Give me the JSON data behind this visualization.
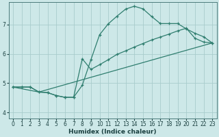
{
  "xlabel": "Humidex (Indice chaleur)",
  "bg_color": "#cde8e8",
  "grid_color": "#a8cccc",
  "line_color": "#2e7d6e",
  "xlim": [
    -0.5,
    23.5
  ],
  "ylim": [
    3.8,
    7.75
  ],
  "yticks": [
    4,
    5,
    6,
    7
  ],
  "xticks": [
    0,
    1,
    2,
    3,
    4,
    5,
    6,
    7,
    8,
    9,
    10,
    11,
    12,
    13,
    14,
    15,
    16,
    17,
    18,
    19,
    20,
    21,
    22,
    23
  ],
  "line1_x": [
    0,
    1,
    2,
    3,
    4,
    5,
    6,
    7,
    8,
    9,
    10,
    11,
    12,
    13,
    14,
    15,
    16,
    17,
    18,
    19,
    20,
    21,
    22,
    23
  ],
  "line1_y": [
    4.87,
    4.87,
    4.87,
    4.7,
    4.68,
    4.58,
    4.52,
    4.52,
    4.93,
    5.8,
    6.65,
    7.02,
    7.28,
    7.52,
    7.62,
    7.53,
    7.27,
    7.03,
    7.03,
    7.03,
    6.85,
    6.7,
    6.58,
    6.37
  ],
  "line2_x": [
    0,
    1,
    2,
    3,
    4,
    5,
    6,
    7,
    8,
    9,
    10,
    11,
    12,
    13,
    14,
    15,
    16,
    17,
    18,
    19,
    20,
    21,
    22,
    23
  ],
  "line2_y": [
    4.87,
    4.87,
    4.87,
    4.7,
    4.68,
    4.58,
    4.52,
    4.52,
    5.83,
    5.47,
    5.63,
    5.8,
    5.98,
    6.1,
    6.23,
    6.35,
    6.47,
    6.57,
    6.67,
    6.78,
    6.87,
    6.53,
    6.4,
    6.37
  ],
  "line3_x": [
    0,
    3,
    23
  ],
  "line3_y": [
    4.87,
    4.7,
    6.37
  ]
}
